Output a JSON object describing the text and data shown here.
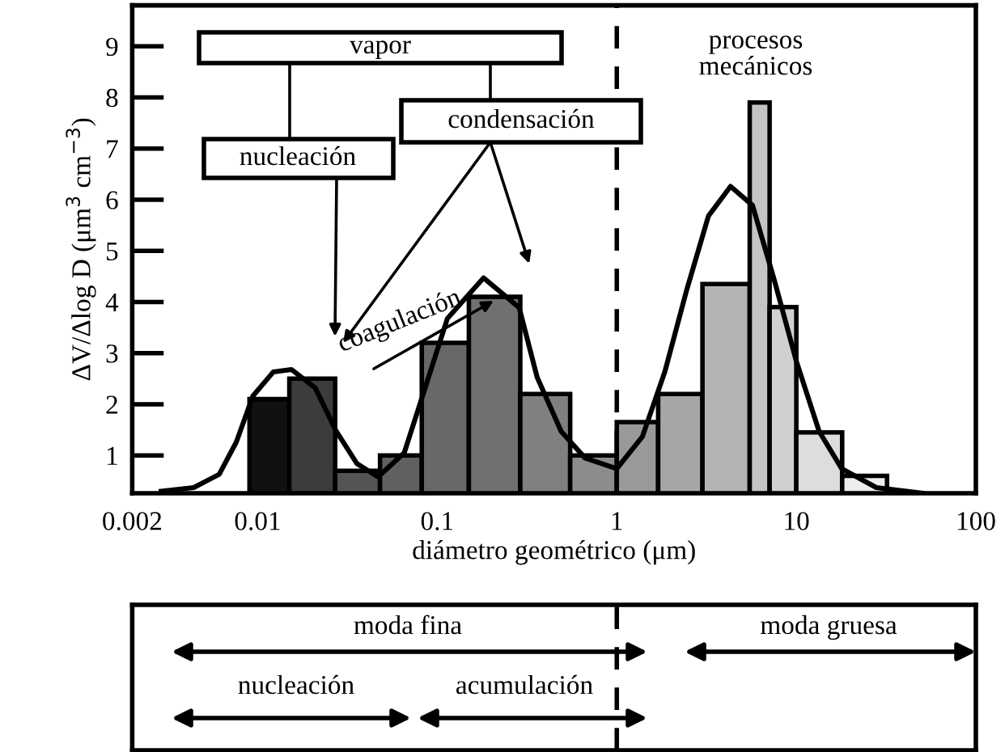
{
  "chart_data": {
    "type": "histogram",
    "xlabel": "diámetro geométrico (μm)",
    "ylabel": "ΔV/Δlog D (μm$^{3}$ cm$^{−3}$)",
    "log": "x",
    "xlim": [
      0.002,
      100
    ],
    "xticks": [
      0.002,
      0.01,
      0.1,
      1,
      10,
      100
    ],
    "ylim": [
      0.26,
      9.8
    ],
    "yticks": [
      1,
      2,
      3,
      4,
      5,
      6,
      7,
      8,
      9
    ],
    "series": [
      {
        "bins": [
          0.009,
          0.015,
          0.027,
          0.048,
          0.082,
          0.15,
          0.29,
          0.55,
          1,
          1.7,
          3,
          5.5,
          7.1,
          10,
          18,
          32
        ],
        "values": [
          2.1,
          2.5,
          0.7,
          1.0,
          3.2,
          4.1,
          2.2,
          1.0,
          1.65,
          2.2,
          4.35,
          7.9,
          3.9,
          1.45,
          0.6
        ],
        "colors": [
          "#111111",
          "#3c3c3c",
          "#545454",
          "#606060",
          "#686868",
          "#707070",
          "#808080",
          "#8c8c8c",
          "#999999",
          "#a6a6a6",
          "#b4b4b4",
          "#c4c4c4",
          "#d0d0d0",
          "#dddddd",
          "#eeeeee"
        ]
      },
      {
        "type": "line",
        "color": "#000000",
        "x": [
          0.0029,
          0.0044,
          0.0061,
          0.0076,
          0.0094,
          0.0122,
          0.0154,
          0.0209,
          0.0274,
          0.0357,
          0.0468,
          0.0655,
          0.0856,
          0.114,
          0.181,
          0.286,
          0.36,
          0.49,
          0.665,
          1.0,
          1.39,
          1.85,
          2.44,
          3.24,
          4.3,
          5.7,
          7.55,
          10,
          13.4,
          17.9,
          27.9,
          50.4
        ],
        "values": [
          0.3,
          0.37,
          0.63,
          1.26,
          2.16,
          2.63,
          2.68,
          2.32,
          1.47,
          0.84,
          0.58,
          1.05,
          2.32,
          3.68,
          4.47,
          3.89,
          2.53,
          1.47,
          0.95,
          0.74,
          1.37,
          2.63,
          4.21,
          5.68,
          6.26,
          5.89,
          4.42,
          2.84,
          1.47,
          0.74,
          0.37,
          0.26
        ]
      }
    ],
    "ref_lines": [
      {
        "axis": "x",
        "value": 1,
        "line_style": "dashed",
        "color": "#000000"
      }
    ],
    "annotations": [
      "vapor",
      "nucleación",
      "condensación",
      "coagulación",
      "procesos\nmecánicos",
      "moda fina",
      "moda gruesa",
      "nucleación",
      "acumulación"
    ]
  }
}
